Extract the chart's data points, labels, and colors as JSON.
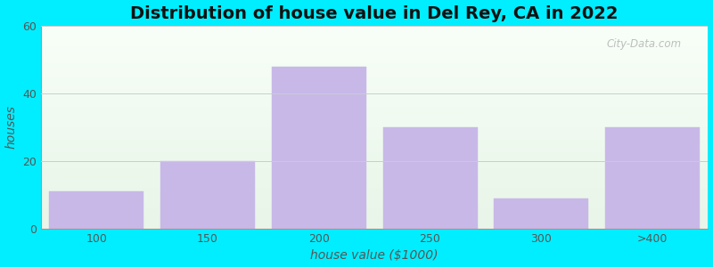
{
  "title": "Distribution of house value in Del Rey, CA in 2022",
  "xlabel": "house value ($1000)",
  "ylabel": "houses",
  "categories": [
    "100",
    "150",
    "200",
    "250",
    "300",
    ">400"
  ],
  "values": [
    11,
    20,
    48,
    30,
    9,
    30
  ],
  "bar_color": "#c8b8e8",
  "bar_edgecolor": "#c8b8e8",
  "ylim": [
    0,
    60
  ],
  "yticks": [
    0,
    20,
    40,
    60
  ],
  "figure_bg": "#00eeff",
  "plot_bg_bottom": "#e8f5e8",
  "plot_bg_top": "#f8fff8",
  "title_fontsize": 14,
  "axis_label_fontsize": 10,
  "tick_fontsize": 9,
  "watermark": "City-Data.com"
}
